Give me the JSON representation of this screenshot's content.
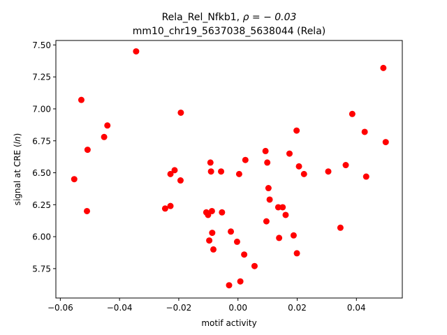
{
  "chart_data": {
    "type": "scatter",
    "title_line1_prefix": "Rela_Rel_Nfkb1, ",
    "title_line1_rho": "ρ = − 0.03",
    "title_line2": "mm10_chr19_5637038_5638044 (Rela)",
    "xlabel": "motif activity",
    "ylabel_prefix": "signal at CRE (",
    "ylabel_symbol": "ln",
    "ylabel_suffix": ")",
    "xlim": [
      -0.0615,
      0.0555
    ],
    "ylim": [
      5.52,
      7.535
    ],
    "xticks": [
      -0.06,
      -0.04,
      -0.02,
      0.0,
      0.02,
      0.04
    ],
    "xtick_labels": [
      "−0.06",
      "−0.04",
      "−0.02",
      "0.00",
      "0.02",
      "0.04"
    ],
    "yticks": [
      5.75,
      6.0,
      6.25,
      6.5,
      6.75,
      7.0,
      7.25,
      7.5
    ],
    "ytick_labels": [
      "5.75",
      "6.00",
      "6.25",
      "6.50",
      "6.75",
      "7.00",
      "7.25",
      "7.50"
    ],
    "grid": false,
    "marker_color": "#ff0000",
    "points": [
      {
        "x": -0.0553,
        "y": 6.45
      },
      {
        "x": -0.0529,
        "y": 7.07
      },
      {
        "x": -0.0508,
        "y": 6.68
      },
      {
        "x": -0.051,
        "y": 6.2
      },
      {
        "x": -0.0452,
        "y": 6.78
      },
      {
        "x": -0.0441,
        "y": 6.87
      },
      {
        "x": -0.0344,
        "y": 7.45
      },
      {
        "x": -0.0246,
        "y": 6.22
      },
      {
        "x": -0.0228,
        "y": 6.49
      },
      {
        "x": -0.0228,
        "y": 6.24
      },
      {
        "x": -0.0214,
        "y": 6.52
      },
      {
        "x": -0.0193,
        "y": 6.97
      },
      {
        "x": -0.0194,
        "y": 6.44
      },
      {
        "x": -0.0107,
        "y": 6.19
      },
      {
        "x": -0.0101,
        "y": 6.17
      },
      {
        "x": -0.0097,
        "y": 5.97
      },
      {
        "x": -0.0093,
        "y": 6.58
      },
      {
        "x": -0.0091,
        "y": 6.51
      },
      {
        "x": -0.0088,
        "y": 6.2
      },
      {
        "x": -0.0087,
        "y": 6.03
      },
      {
        "x": -0.0083,
        "y": 5.9
      },
      {
        "x": -0.0057,
        "y": 6.51
      },
      {
        "x": -0.0054,
        "y": 6.19
      },
      {
        "x": -0.003,
        "y": 5.62
      },
      {
        "x": -0.0024,
        "y": 6.04
      },
      {
        "x": -0.0003,
        "y": 5.96
      },
      {
        "x": 0.0004,
        "y": 6.49
      },
      {
        "x": 0.0008,
        "y": 5.65
      },
      {
        "x": 0.0021,
        "y": 5.86
      },
      {
        "x": 0.0025,
        "y": 6.6
      },
      {
        "x": 0.0056,
        "y": 5.77
      },
      {
        "x": 0.0093,
        "y": 6.67
      },
      {
        "x": 0.0096,
        "y": 6.12
      },
      {
        "x": 0.0099,
        "y": 6.58
      },
      {
        "x": 0.0103,
        "y": 6.38
      },
      {
        "x": 0.0107,
        "y": 6.29
      },
      {
        "x": 0.0136,
        "y": 6.23
      },
      {
        "x": 0.0139,
        "y": 5.99
      },
      {
        "x": 0.0151,
        "y": 6.23
      },
      {
        "x": 0.0161,
        "y": 6.17
      },
      {
        "x": 0.0174,
        "y": 6.65
      },
      {
        "x": 0.0188,
        "y": 6.01
      },
      {
        "x": 0.0198,
        "y": 6.83
      },
      {
        "x": 0.0199,
        "y": 5.87
      },
      {
        "x": 0.0206,
        "y": 6.55
      },
      {
        "x": 0.0223,
        "y": 6.49
      },
      {
        "x": 0.0305,
        "y": 6.51
      },
      {
        "x": 0.0346,
        "y": 6.07
      },
      {
        "x": 0.0364,
        "y": 6.56
      },
      {
        "x": 0.0386,
        "y": 6.96
      },
      {
        "x": 0.0428,
        "y": 6.82
      },
      {
        "x": 0.0433,
        "y": 6.47
      },
      {
        "x": 0.0491,
        "y": 7.32
      },
      {
        "x": 0.0499,
        "y": 6.74
      }
    ]
  }
}
